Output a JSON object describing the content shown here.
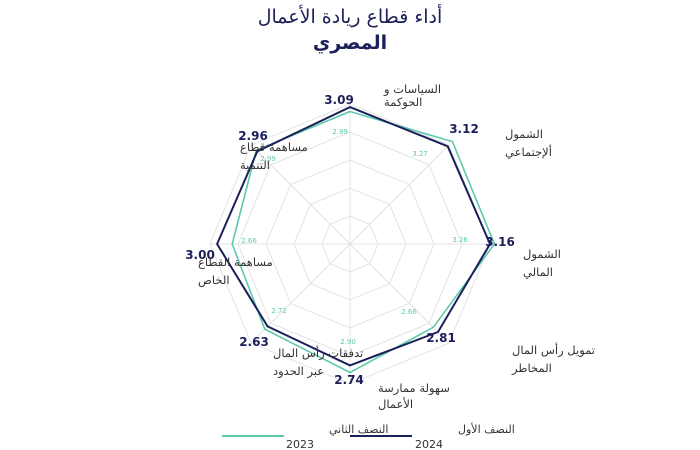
{
  "header": {
    "title_line1": "أداء قطاع ريادة الأعمال",
    "title_line2": "المصري"
  },
  "chart_data": {
    "type": "radar",
    "title": "أداء قطاع ريادة الأعمال المصري",
    "categories": [
      [
        "السياسات و",
        "الحوكمة"
      ],
      [
        "الشمول",
        "ألإجتماعي"
      ],
      [
        "الشمول",
        "المالي"
      ],
      [
        "تمويل رأس المال",
        "المخاطر"
      ],
      [
        "سهولة ممارسة",
        "الأعمال"
      ],
      [
        "تدفقات رأس المال",
        "عبر الحدود"
      ],
      [
        "مساهمة القطاع",
        "الخاص"
      ],
      [
        "مساهمة قطاع",
        "التنمية"
      ]
    ],
    "series": [
      {
        "name": "النصف الأول",
        "period": "2024",
        "color": "#1b1f5a",
        "values": [
          3.09,
          3.12,
          3.16,
          2.81,
          2.74,
          2.63,
          3.0,
          2.96
        ],
        "labels": [
          "3.09",
          "3.12",
          "3.16",
          "2.81",
          "2.74",
          "2.63",
          "3.00",
          "2.96"
        ]
      },
      {
        "name": "النصف الثاني",
        "period": "2023",
        "color": "#5cc9ad",
        "values": [
          2.99,
          3.27,
          3.26,
          2.66,
          2.9,
          2.72,
          2.66,
          2.99
        ],
        "labels": [
          "2.99",
          "3.27",
          "3.26",
          "2.66",
          "2.90",
          "2.72",
          "2.66",
          "2.99"
        ]
      }
    ],
    "grid": true
  },
  "legend": {
    "items": [
      {
        "label": "النصف الأول",
        "period": "2024",
        "color": "#1b1f5a"
      },
      {
        "label": "النصف الثاني",
        "period": "2023",
        "color": "#5cc9ad"
      }
    ]
  }
}
